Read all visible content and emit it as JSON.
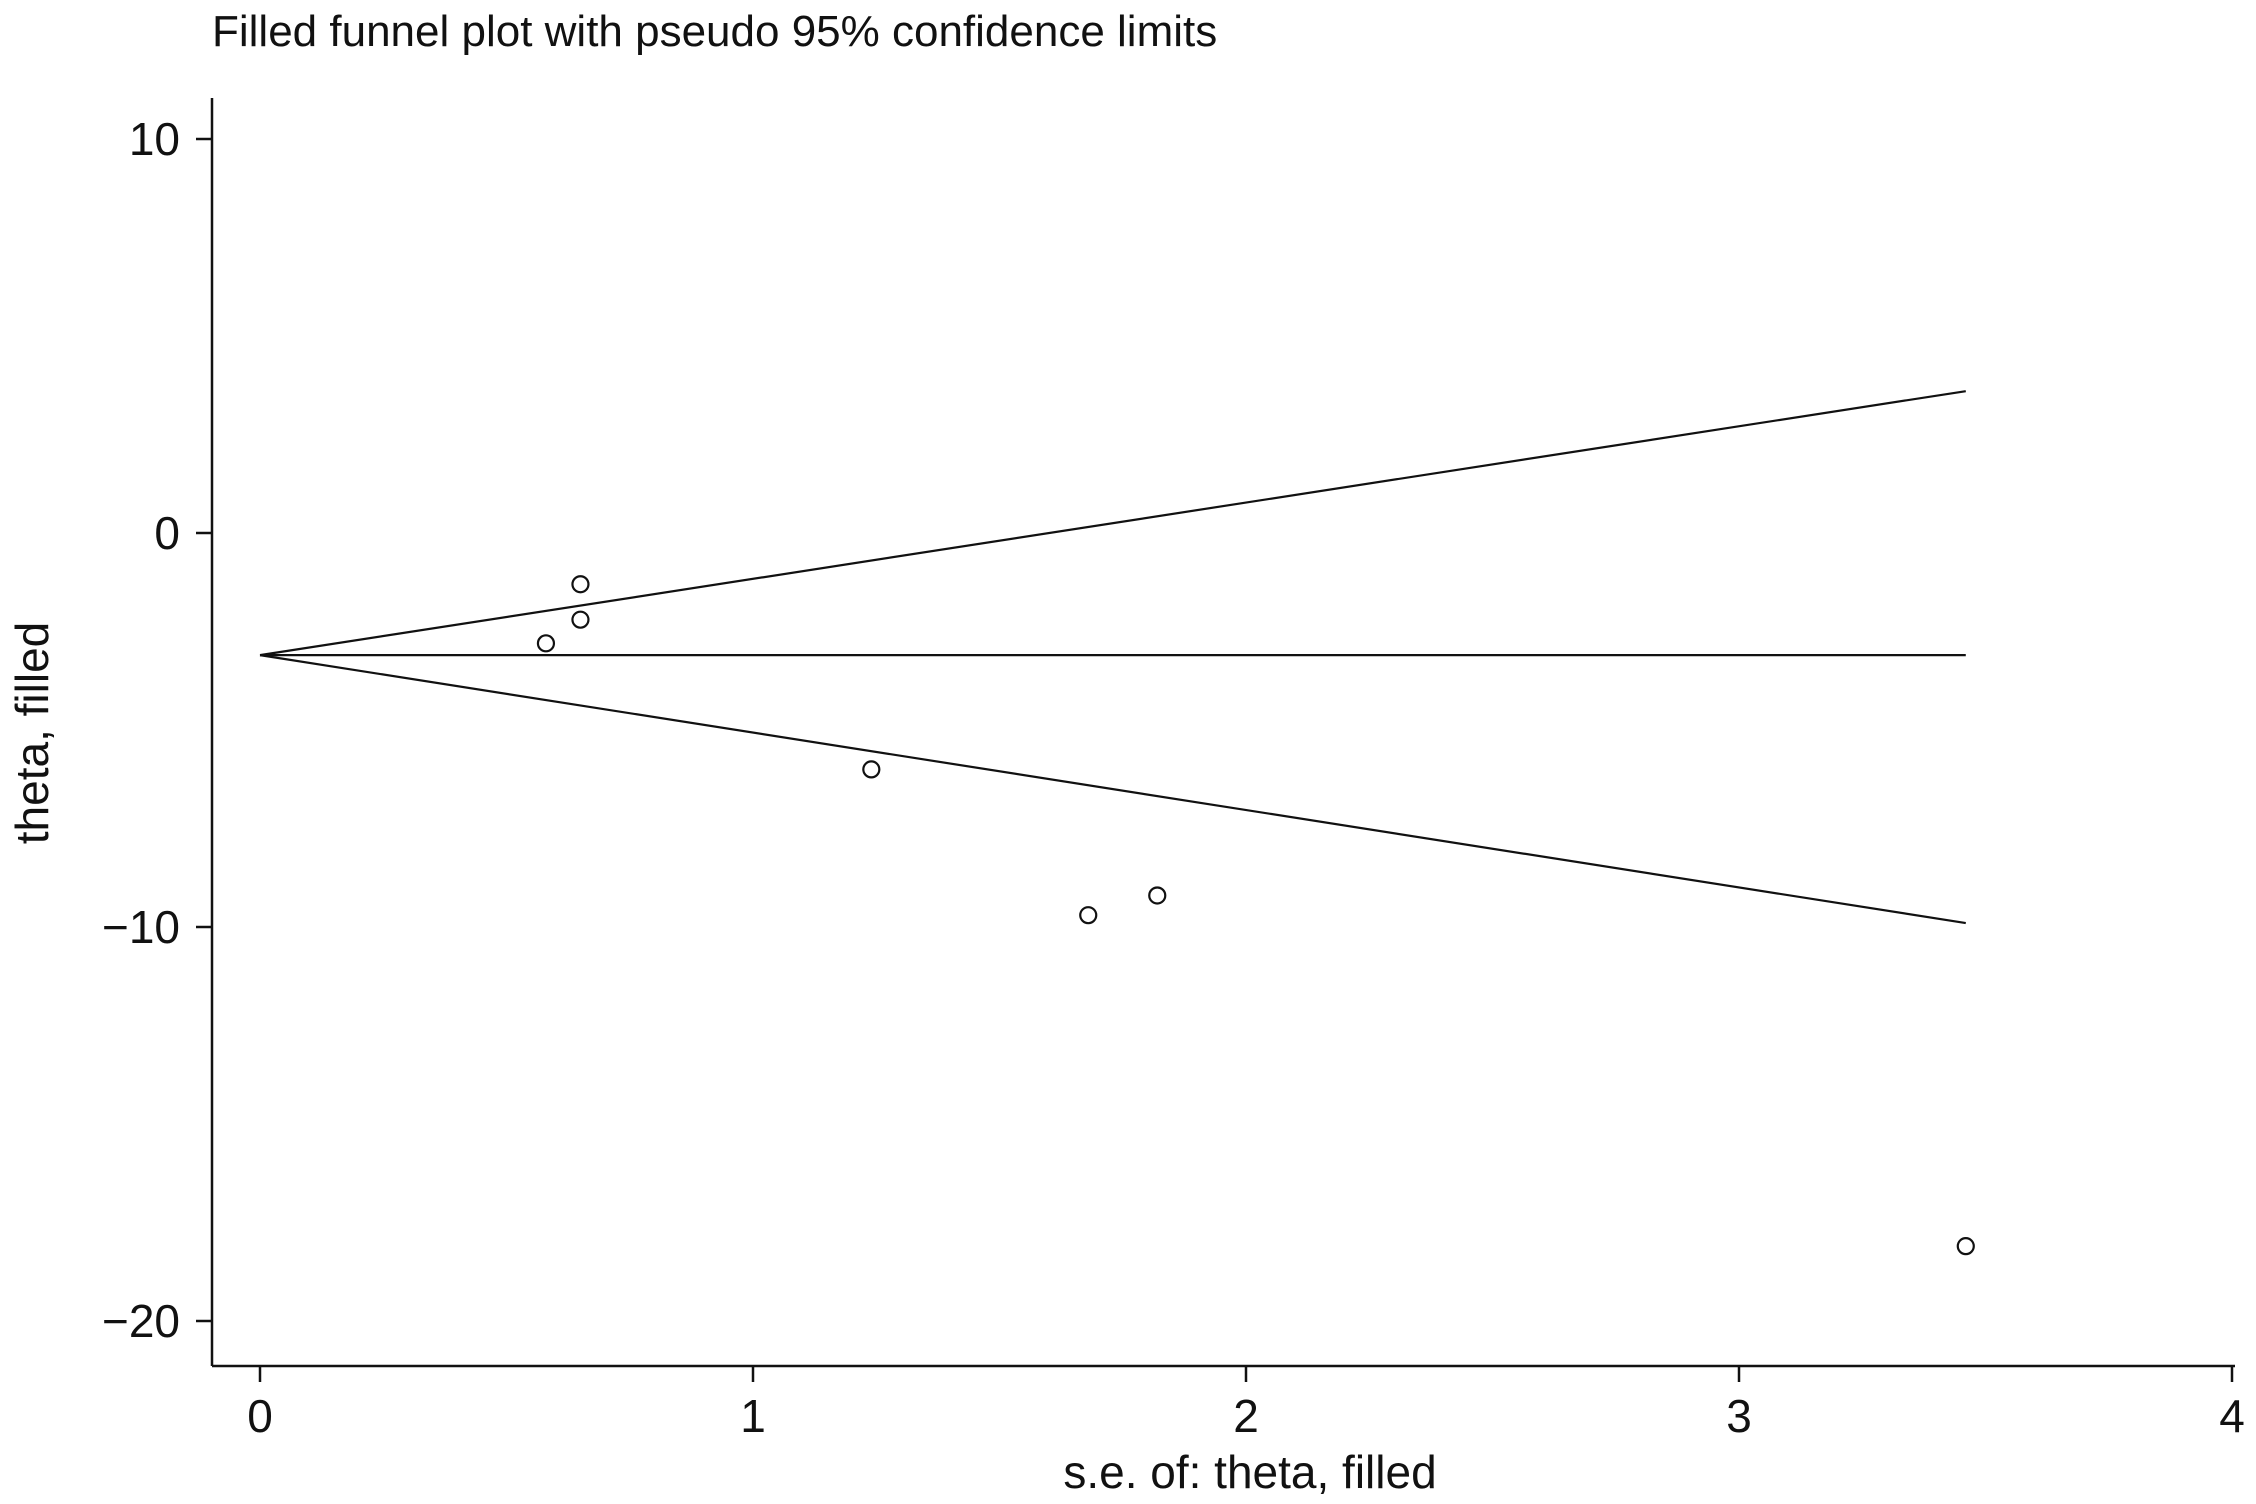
{
  "chart_data": {
    "type": "scatter",
    "title": "Filled funnel plot with pseudo 95% confidence limits",
    "xlabel": "s.e. of: theta, filled",
    "ylabel": "theta, filled",
    "xlim": [
      0,
      4
    ],
    "ylim": [
      -20,
      10
    ],
    "x_ticks": [
      0,
      1,
      2,
      3,
      4
    ],
    "y_ticks": [
      10,
      0,
      -10,
      -20
    ],
    "x_tick_labels": [
      "0",
      "1",
      "2",
      "3",
      "4"
    ],
    "y_tick_labels": [
      "10",
      "0",
      "−10",
      "−20"
    ],
    "grid": false,
    "points": [
      {
        "x": 0.65,
        "y": -1.3
      },
      {
        "x": 0.65,
        "y": -2.2
      },
      {
        "x": 0.58,
        "y": -2.8
      },
      {
        "x": 1.24,
        "y": -6.0
      },
      {
        "x": 1.68,
        "y": -9.7
      },
      {
        "x": 1.82,
        "y": -9.2
      },
      {
        "x": 3.46,
        "y": -18.1
      }
    ],
    "pooled_estimate": -3.1,
    "funnel_se_max": 3.46,
    "confidence_limits": {
      "upper": [
        {
          "x": 0,
          "y": -3.1
        },
        {
          "x": 3.46,
          "y": 3.6
        }
      ],
      "lower": [
        {
          "x": 0,
          "y": -3.1
        },
        {
          "x": 3.46,
          "y": -9.9
        }
      ]
    }
  }
}
